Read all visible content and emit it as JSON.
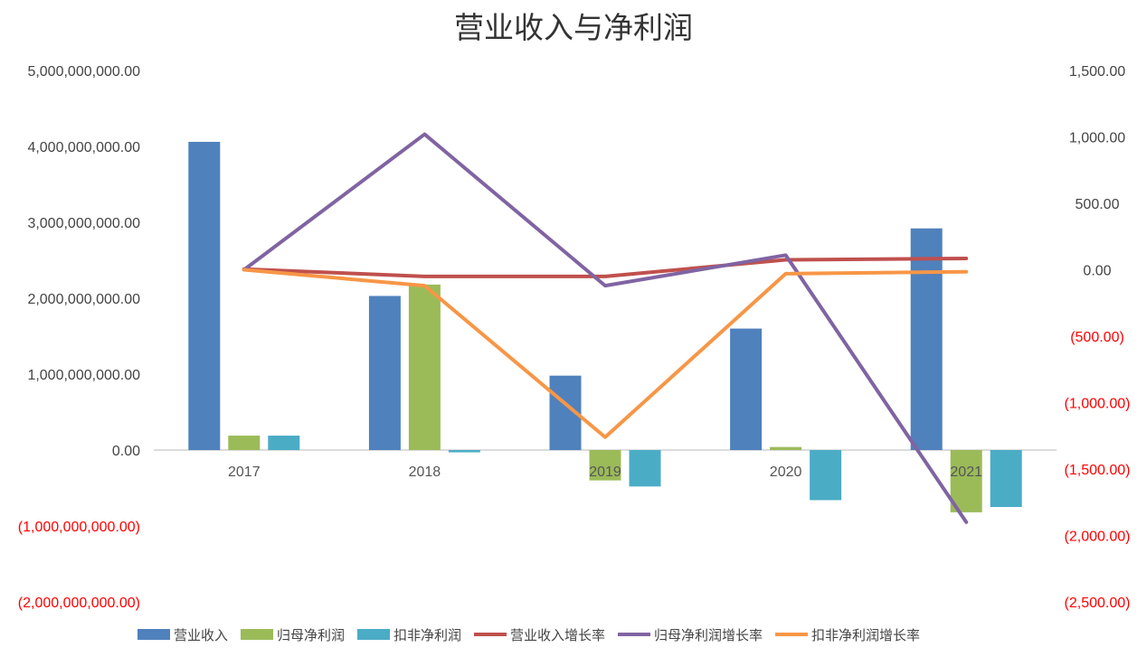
{
  "chart_data": {
    "type": "bar",
    "title": "营业收入与净利润",
    "categories": [
      "2017",
      "2018",
      "2019",
      "2020",
      "2021"
    ],
    "y_left": {
      "min": -2000000000,
      "max": 5000000000,
      "step": 1000000000,
      "tick_labels": [
        "5,000,000,000.00",
        "4,000,000,000.00",
        "3,000,000,000.00",
        "2,000,000,000.00",
        "1,000,000,000.00",
        "0.00",
        "(1,000,000,000.00)",
        "(2,000,000,000.00)"
      ]
    },
    "y_right": {
      "min": -2500,
      "max": 1500,
      "step": 500,
      "tick_labels": [
        "1,500.00",
        "1,000.00",
        "500.00",
        "0.00",
        "(500.00)",
        "(1,000.00)",
        "(1,500.00)",
        "(2,000.00)",
        "(2,500.00)"
      ]
    },
    "negative_tick_color": "#ff0000",
    "positive_tick_color": "#444444",
    "bar_series": [
      {
        "name": "营业收入",
        "color": "#4f81bd",
        "values": [
          4060000000,
          2030000000,
          980000000,
          1600000000,
          2920000000
        ]
      },
      {
        "name": "归母净利润",
        "color": "#9bbb59",
        "values": [
          190000000,
          2180000000,
          -400000000,
          40000000,
          -820000000
        ]
      },
      {
        "name": "扣非净利润",
        "color": "#4bacc6",
        "values": [
          190000000,
          -30000000,
          -480000000,
          -660000000,
          -750000000
        ]
      }
    ],
    "line_series": [
      {
        "name": "营业收入增长率",
        "color": "#c0504d",
        "axis": "right",
        "values": [
          5,
          -50,
          -50,
          75,
          85
        ]
      },
      {
        "name": "归母净利润增长率",
        "color": "#8064a2",
        "axis": "right",
        "values": [
          0,
          1020,
          -120,
          110,
          -1900
        ]
      },
      {
        "name": "扣非净利润增长率",
        "color": "#f79646",
        "axis": "right",
        "values": [
          0,
          -120,
          -1260,
          -30,
          -15
        ]
      }
    ],
    "legend_position": "bottom",
    "grid": false
  }
}
